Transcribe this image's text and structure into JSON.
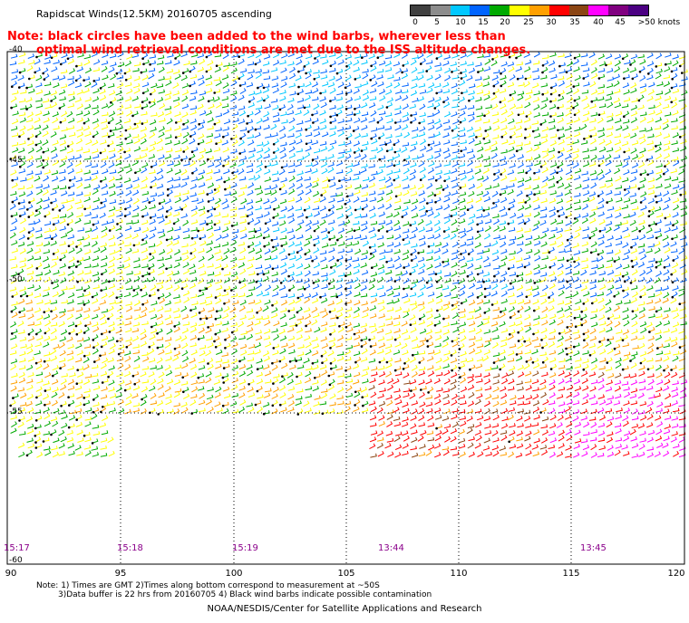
{
  "header": {
    "title": "Rapidscat Winds(12.5KM) 20160705 ascending",
    "note_line1": "Note: black circles have been added to the wind barbs, wherever less than",
    "note_line2": "optimal wind retrieval conditions are met due to the ISS altitude changes."
  },
  "color_scale": {
    "labels": [
      "0",
      "5",
      "10",
      "15",
      "20",
      "25",
      "30",
      "35",
      "40",
      "45",
      ">50 knots"
    ],
    "colors": [
      "#404040",
      "#8c8c8c",
      "#00c8ff",
      "#0064ff",
      "#00aa00",
      "#ffff00",
      "#ffa000",
      "#ff0000",
      "#8b4513",
      "#ff00ff",
      "#800080",
      "#4b0082"
    ]
  },
  "map": {
    "latitudes": [
      "-40",
      "-45",
      "-50",
      "-55",
      "-60"
    ],
    "longitudes": [
      "90",
      "95",
      "100",
      "105",
      "110",
      "115",
      "120"
    ],
    "pass_times": [
      "15:17",
      "15:18",
      "15:19",
      "13:44",
      "13:45"
    ]
  },
  "footer": {
    "line1": "Note: 1) Times are GMT 2)Times along bottom correspond to measurement at ~50S",
    "line2": "3)Data buffer is 22 hrs from 20160705 4) Black wind barbs indicate possible contamination",
    "credit": "NOAA/NESDIS/Center for Satellite Applications and Research"
  }
}
